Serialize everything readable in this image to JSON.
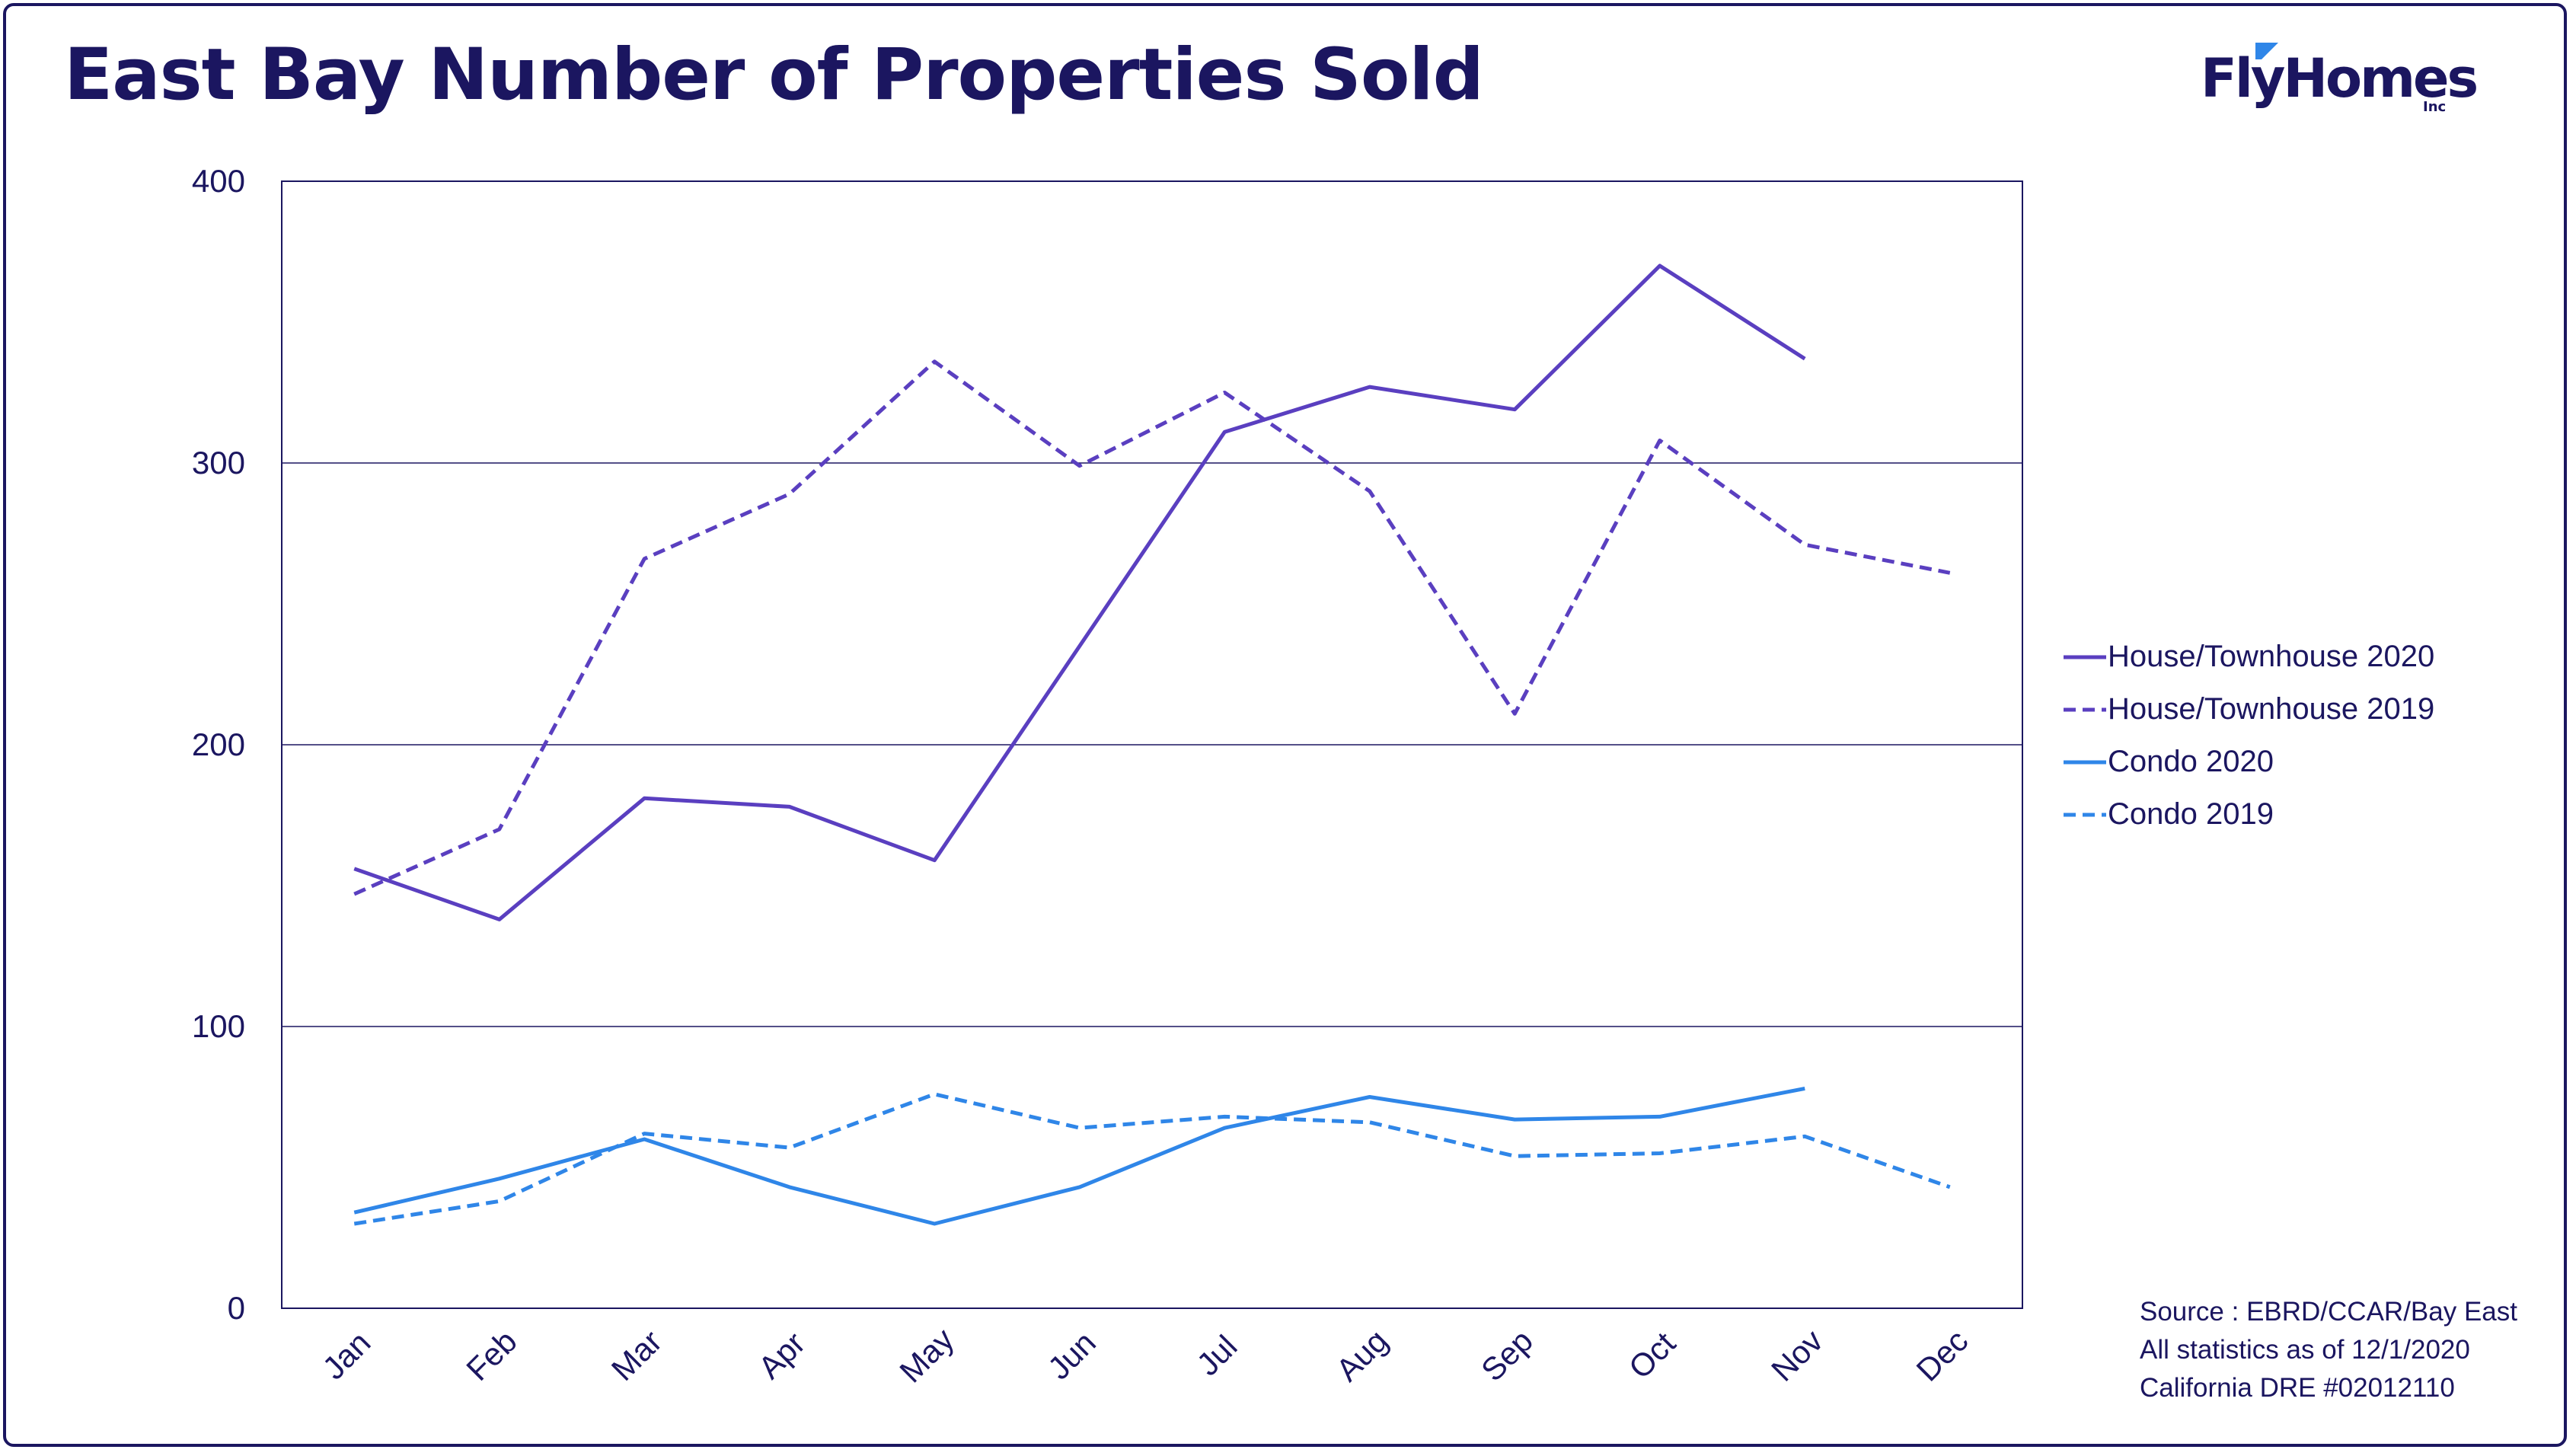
{
  "title": "East Bay Number of Properties Sold",
  "logo": {
    "text": "FlyHomes",
    "sub": "Inc",
    "brand_color": "#1b1660",
    "accent_color": "#2f86e8"
  },
  "footnote": {
    "lines": [
      "Source : EBRD/CCAR/Bay East",
      "All statistics as of 12/1/2020",
      "California DRE #02012110"
    ]
  },
  "chart_data": {
    "type": "line",
    "title": "East Bay Number of Properties Sold",
    "xlabel": "",
    "ylabel": "",
    "categories": [
      "Jan",
      "Feb",
      "Mar",
      "Apr",
      "May",
      "Jun",
      "Jul",
      "Aug",
      "Sep",
      "Oct",
      "Nov",
      "Dec"
    ],
    "ylim": [
      0,
      400
    ],
    "yticks": [
      0,
      100,
      200,
      300,
      400
    ],
    "grid": "horizontal",
    "legend_position": "right",
    "series": [
      {
        "name": "House/Townhouse 2020",
        "color": "#5a3fc0",
        "style": "solid",
        "values": [
          156,
          138,
          181,
          178,
          159,
          235,
          311,
          327,
          319,
          370,
          337,
          null
        ]
      },
      {
        "name": "House/Townhouse 2019",
        "color": "#5a3fc0",
        "style": "dashed",
        "values": [
          147,
          170,
          266,
          289,
          336,
          299,
          325,
          290,
          211,
          308,
          271,
          261
        ]
      },
      {
        "name": "Condo 2020",
        "color": "#2f86e8",
        "style": "solid",
        "values": [
          34,
          46,
          60,
          43,
          30,
          43,
          64,
          75,
          67,
          68,
          78,
          null
        ]
      },
      {
        "name": "Condo 2019",
        "color": "#2f86e8",
        "style": "dashed",
        "values": [
          30,
          38,
          62,
          57,
          76,
          64,
          68,
          66,
          54,
          55,
          61,
          43
        ]
      }
    ]
  }
}
